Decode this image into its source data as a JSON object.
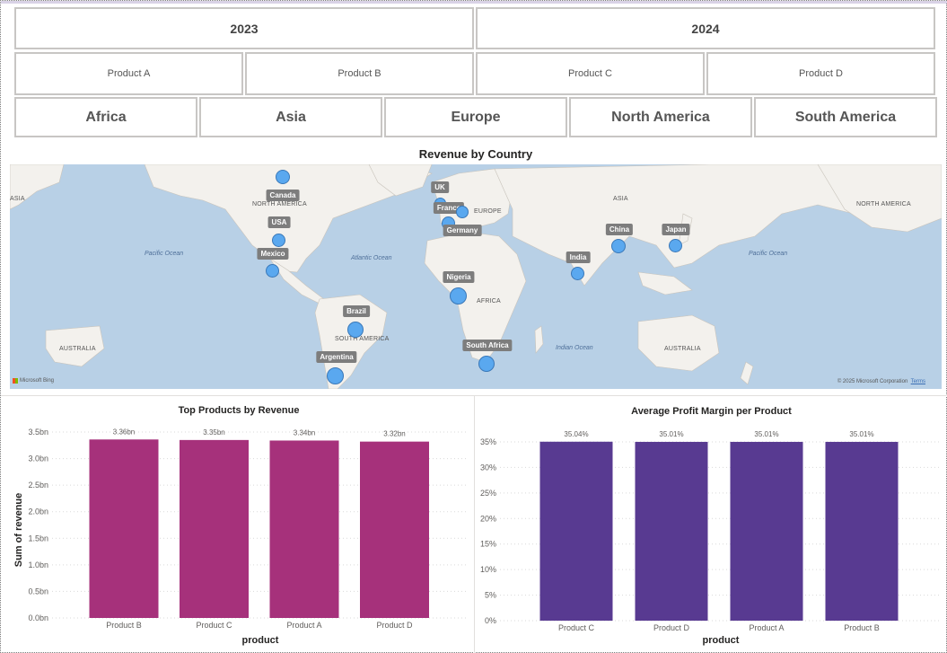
{
  "slicers": {
    "years": [
      "2023",
      "2024"
    ],
    "products": [
      "Product A",
      "Product B",
      "Product C",
      "Product D"
    ],
    "regions": [
      "Africa",
      "Asia",
      "Europe",
      "North America",
      "South America"
    ]
  },
  "map": {
    "title": "Revenue by Country",
    "countries": [
      "Canada",
      "USA",
      "Mexico",
      "UK",
      "France",
      "Germany",
      "Nigeria",
      "Brazil",
      "Argentina",
      "South Africa",
      "India",
      "China",
      "Japan"
    ],
    "continent_labels": [
      "ASIA",
      "NORTH AMERICA",
      "EUROPE",
      "ASIA",
      "NORTH AMERICA",
      "AFRICA",
      "SOUTH AMERICA",
      "AUSTRALIA",
      "AUSTRALIA"
    ],
    "ocean_labels": [
      "Pacific Ocean",
      "Atlantic Ocean",
      "Pacific Ocean",
      "Indian Ocean"
    ],
    "attribution": "© 2025 Microsoft Corporation",
    "terms": "Terms",
    "logo_text": "Microsoft Bing",
    "colors": {
      "pin": "#5aa8ef",
      "water": "#b8d0e6",
      "land": "#f3f1ed"
    }
  },
  "chart_data": [
    {
      "type": "bar",
      "title": "Top Products by Revenue",
      "xlabel": "product",
      "ylabel": "Sum of revenue",
      "categories": [
        "Product B",
        "Product C",
        "Product A",
        "Product D"
      ],
      "values": [
        3.36,
        3.35,
        3.34,
        3.32
      ],
      "data_labels": [
        "3.36bn",
        "3.35bn",
        "3.34bn",
        "3.32bn"
      ],
      "yticks": [
        "0.0bn",
        "0.5bn",
        "1.0bn",
        "1.5bn",
        "2.0bn",
        "2.5bn",
        "3.0bn",
        "3.5bn"
      ],
      "ylim": [
        0,
        3.5
      ],
      "color": "#a6317b",
      "grid": true
    },
    {
      "type": "bar",
      "title": "Average Profit Margin per Product",
      "xlabel": "product",
      "ylabel": "",
      "categories": [
        "Product C",
        "Product D",
        "Product A",
        "Product B"
      ],
      "values": [
        35.04,
        35.01,
        35.01,
        35.01
      ],
      "data_labels": [
        "35.04%",
        "35.01%",
        "35.01%",
        "35.01%"
      ],
      "yticks": [
        "0%",
        "5%",
        "10%",
        "15%",
        "20%",
        "25%",
        "30%",
        "35%"
      ],
      "ylim": [
        0,
        35
      ],
      "color": "#583a91",
      "grid": true
    }
  ]
}
